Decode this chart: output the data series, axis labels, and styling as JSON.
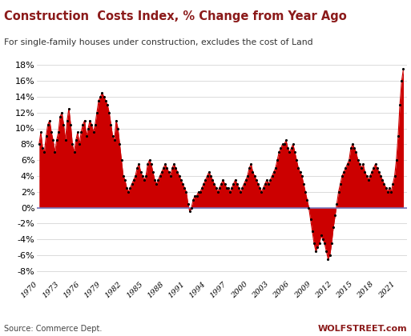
{
  "title": "Construction  Costs Index, % Change from Year Ago",
  "subtitle": "For single-family houses under construction, excludes the cost of Land",
  "source_left": "Source: Commerce Dept.",
  "source_right": "WOLFSTREET.com",
  "title_color": "#8B1A1A",
  "subtitle_color": "#333333",
  "line_color": "#CC0000",
  "fill_color": "#CC0000",
  "dot_color": "#000000",
  "zero_line_color": "#7777BB",
  "background_color": "#FFFFFF",
  "grid_color": "#CCCCCC",
  "ylim": [
    -9,
    19
  ],
  "yticks": [
    -8,
    -6,
    -4,
    -2,
    0,
    2,
    4,
    6,
    8,
    10,
    12,
    14,
    16,
    18
  ],
  "xtick_years": [
    1970,
    1973,
    1976,
    1979,
    1982,
    1985,
    1988,
    1991,
    1994,
    1997,
    2000,
    2003,
    2006,
    2009,
    2012,
    2015,
    2018,
    2021
  ],
  "quarterly_data": [
    [
      1970.0,
      8.0
    ],
    [
      1970.25,
      9.5
    ],
    [
      1970.5,
      7.5
    ],
    [
      1970.75,
      7.0
    ],
    [
      1971.0,
      9.0
    ],
    [
      1971.25,
      10.5
    ],
    [
      1971.5,
      11.0
    ],
    [
      1971.75,
      9.5
    ],
    [
      1972.0,
      8.5
    ],
    [
      1972.25,
      7.0
    ],
    [
      1972.5,
      8.5
    ],
    [
      1972.75,
      9.5
    ],
    [
      1973.0,
      11.5
    ],
    [
      1973.25,
      12.0
    ],
    [
      1973.5,
      10.5
    ],
    [
      1973.75,
      8.5
    ],
    [
      1974.0,
      11.0
    ],
    [
      1974.25,
      12.5
    ],
    [
      1974.5,
      10.5
    ],
    [
      1974.75,
      8.0
    ],
    [
      1975.0,
      7.0
    ],
    [
      1975.25,
      8.5
    ],
    [
      1975.5,
      9.5
    ],
    [
      1975.75,
      8.0
    ],
    [
      1976.0,
      9.5
    ],
    [
      1976.25,
      10.5
    ],
    [
      1976.5,
      11.0
    ],
    [
      1976.75,
      9.0
    ],
    [
      1977.0,
      10.0
    ],
    [
      1977.25,
      11.0
    ],
    [
      1977.5,
      10.5
    ],
    [
      1977.75,
      9.5
    ],
    [
      1978.0,
      10.5
    ],
    [
      1978.25,
      12.0
    ],
    [
      1978.5,
      13.5
    ],
    [
      1978.75,
      14.0
    ],
    [
      1979.0,
      14.5
    ],
    [
      1979.25,
      14.0
    ],
    [
      1979.5,
      13.5
    ],
    [
      1979.75,
      13.0
    ],
    [
      1980.0,
      12.0
    ],
    [
      1980.25,
      10.5
    ],
    [
      1980.5,
      9.0
    ],
    [
      1980.75,
      8.5
    ],
    [
      1981.0,
      11.0
    ],
    [
      1981.25,
      10.0
    ],
    [
      1981.5,
      8.0
    ],
    [
      1981.75,
      6.0
    ],
    [
      1982.0,
      4.0
    ],
    [
      1982.25,
      3.5
    ],
    [
      1982.5,
      2.5
    ],
    [
      1982.75,
      2.0
    ],
    [
      1983.0,
      2.5
    ],
    [
      1983.25,
      3.0
    ],
    [
      1983.5,
      3.5
    ],
    [
      1983.75,
      4.0
    ],
    [
      1984.0,
      5.0
    ],
    [
      1984.25,
      5.5
    ],
    [
      1984.5,
      4.5
    ],
    [
      1984.75,
      4.0
    ],
    [
      1985.0,
      3.5
    ],
    [
      1985.25,
      4.0
    ],
    [
      1985.5,
      5.5
    ],
    [
      1985.75,
      6.0
    ],
    [
      1986.0,
      5.5
    ],
    [
      1986.25,
      4.5
    ],
    [
      1986.5,
      3.5
    ],
    [
      1986.75,
      3.0
    ],
    [
      1987.0,
      3.5
    ],
    [
      1987.25,
      4.0
    ],
    [
      1987.5,
      4.5
    ],
    [
      1987.75,
      5.0
    ],
    [
      1988.0,
      5.5
    ],
    [
      1988.25,
      5.0
    ],
    [
      1988.5,
      4.5
    ],
    [
      1988.75,
      4.0
    ],
    [
      1989.0,
      5.0
    ],
    [
      1989.25,
      5.5
    ],
    [
      1989.5,
      5.0
    ],
    [
      1989.75,
      4.5
    ],
    [
      1990.0,
      4.0
    ],
    [
      1990.25,
      3.5
    ],
    [
      1990.5,
      3.0
    ],
    [
      1990.75,
      2.5
    ],
    [
      1991.0,
      2.0
    ],
    [
      1991.25,
      0.5
    ],
    [
      1991.5,
      -0.5
    ],
    [
      1991.75,
      0.0
    ],
    [
      1992.0,
      1.0
    ],
    [
      1992.25,
      1.5
    ],
    [
      1992.5,
      1.5
    ],
    [
      1992.75,
      2.0
    ],
    [
      1993.0,
      2.0
    ],
    [
      1993.25,
      2.5
    ],
    [
      1993.5,
      3.0
    ],
    [
      1993.75,
      3.5
    ],
    [
      1994.0,
      4.0
    ],
    [
      1994.25,
      4.5
    ],
    [
      1994.5,
      4.0
    ],
    [
      1994.75,
      3.5
    ],
    [
      1995.0,
      3.0
    ],
    [
      1995.25,
      2.5
    ],
    [
      1995.5,
      2.0
    ],
    [
      1995.75,
      2.5
    ],
    [
      1996.0,
      3.0
    ],
    [
      1996.25,
      3.5
    ],
    [
      1996.5,
      3.0
    ],
    [
      1996.75,
      2.5
    ],
    [
      1997.0,
      2.5
    ],
    [
      1997.25,
      2.0
    ],
    [
      1997.5,
      2.5
    ],
    [
      1997.75,
      3.0
    ],
    [
      1998.0,
      3.5
    ],
    [
      1998.25,
      3.0
    ],
    [
      1998.5,
      2.5
    ],
    [
      1998.75,
      2.0
    ],
    [
      1999.0,
      2.5
    ],
    [
      1999.25,
      3.0
    ],
    [
      1999.5,
      3.5
    ],
    [
      1999.75,
      4.0
    ],
    [
      2000.0,
      5.0
    ],
    [
      2000.25,
      5.5
    ],
    [
      2000.5,
      4.5
    ],
    [
      2000.75,
      4.0
    ],
    [
      2001.0,
      3.5
    ],
    [
      2001.25,
      3.0
    ],
    [
      2001.5,
      2.5
    ],
    [
      2001.75,
      2.0
    ],
    [
      2002.0,
      2.5
    ],
    [
      2002.25,
      3.0
    ],
    [
      2002.5,
      3.5
    ],
    [
      2002.75,
      3.0
    ],
    [
      2003.0,
      3.5
    ],
    [
      2003.25,
      4.0
    ],
    [
      2003.5,
      4.5
    ],
    [
      2003.75,
      5.0
    ],
    [
      2004.0,
      6.0
    ],
    [
      2004.25,
      7.0
    ],
    [
      2004.5,
      7.5
    ],
    [
      2004.75,
      8.0
    ],
    [
      2005.0,
      8.0
    ],
    [
      2005.25,
      8.5
    ],
    [
      2005.5,
      7.5
    ],
    [
      2005.75,
      7.0
    ],
    [
      2006.0,
      7.5
    ],
    [
      2006.25,
      8.0
    ],
    [
      2006.5,
      7.0
    ],
    [
      2006.75,
      6.0
    ],
    [
      2007.0,
      5.0
    ],
    [
      2007.25,
      4.5
    ],
    [
      2007.5,
      4.0
    ],
    [
      2007.75,
      3.0
    ],
    [
      2008.0,
      2.0
    ],
    [
      2008.25,
      1.0
    ],
    [
      2008.5,
      0.0
    ],
    [
      2008.75,
      -1.5
    ],
    [
      2009.0,
      -3.0
    ],
    [
      2009.25,
      -4.5
    ],
    [
      2009.5,
      -5.5
    ],
    [
      2009.75,
      -5.0
    ],
    [
      2010.0,
      -4.5
    ],
    [
      2010.25,
      -3.5
    ],
    [
      2010.5,
      -4.0
    ],
    [
      2010.75,
      -4.5
    ],
    [
      2011.0,
      -5.5
    ],
    [
      2011.25,
      -6.5
    ],
    [
      2011.5,
      -6.0
    ],
    [
      2011.75,
      -4.5
    ],
    [
      2012.0,
      -2.5
    ],
    [
      2012.25,
      -1.0
    ],
    [
      2012.5,
      0.5
    ],
    [
      2012.75,
      2.0
    ],
    [
      2013.0,
      3.0
    ],
    [
      2013.25,
      4.0
    ],
    [
      2013.5,
      4.5
    ],
    [
      2013.75,
      5.0
    ],
    [
      2014.0,
      5.5
    ],
    [
      2014.25,
      6.0
    ],
    [
      2014.5,
      7.5
    ],
    [
      2014.75,
      8.0
    ],
    [
      2015.0,
      7.5
    ],
    [
      2015.25,
      7.0
    ],
    [
      2015.5,
      6.0
    ],
    [
      2015.75,
      5.5
    ],
    [
      2016.0,
      5.0
    ],
    [
      2016.25,
      5.5
    ],
    [
      2016.5,
      4.5
    ],
    [
      2016.75,
      4.0
    ],
    [
      2017.0,
      3.5
    ],
    [
      2017.25,
      4.0
    ],
    [
      2017.5,
      4.5
    ],
    [
      2017.75,
      5.0
    ],
    [
      2018.0,
      5.5
    ],
    [
      2018.25,
      5.0
    ],
    [
      2018.5,
      4.5
    ],
    [
      2018.75,
      4.0
    ],
    [
      2019.0,
      3.5
    ],
    [
      2019.25,
      3.0
    ],
    [
      2019.5,
      2.5
    ],
    [
      2019.75,
      2.0
    ],
    [
      2020.0,
      2.5
    ],
    [
      2020.25,
      2.0
    ],
    [
      2020.5,
      3.0
    ],
    [
      2020.75,
      4.0
    ],
    [
      2021.0,
      6.0
    ],
    [
      2021.25,
      9.0
    ],
    [
      2021.5,
      13.0
    ],
    [
      2021.75,
      16.0
    ],
    [
      2022.0,
      17.5
    ]
  ]
}
